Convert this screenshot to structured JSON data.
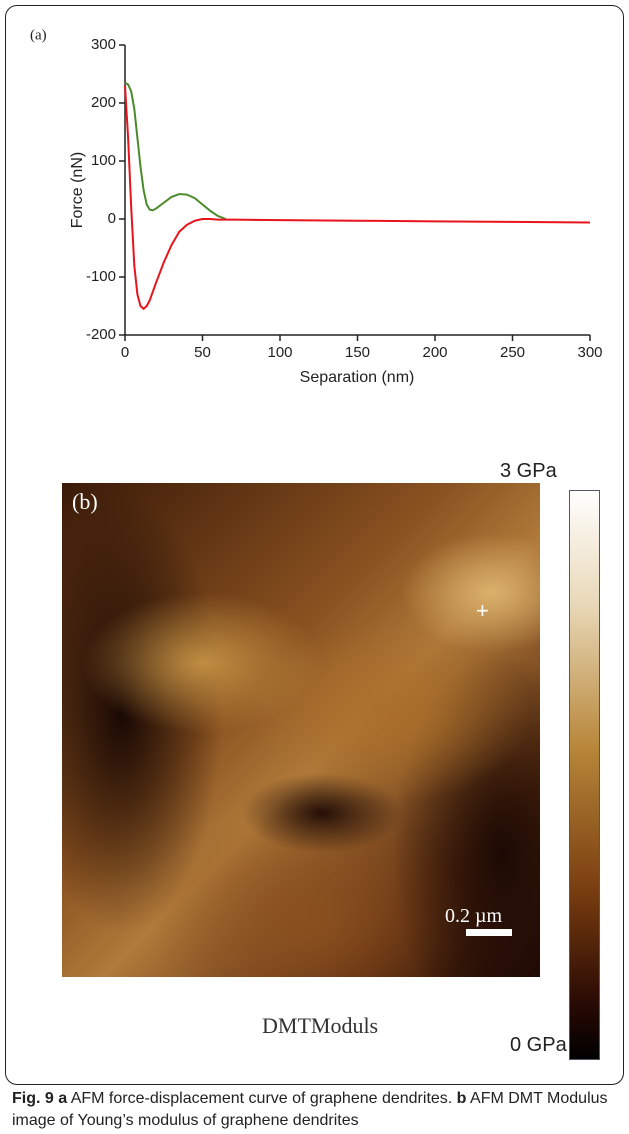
{
  "chart_data": {
    "type": "line",
    "panel_label": "(a)",
    "xlabel": "Separation (nm)",
    "ylabel": "Force (nN)",
    "x": [
      0,
      2,
      4,
      6,
      8,
      10,
      12,
      14,
      16,
      18,
      20,
      25,
      30,
      35,
      40,
      45,
      50,
      55,
      60,
      65,
      70,
      100,
      150,
      200,
      250,
      300
    ],
    "series": [
      {
        "color": "#4a8a2a",
        "values": [
          235,
          232,
          220,
          190,
          140,
          90,
          50,
          25,
          16,
          15,
          18,
          28,
          38,
          43,
          42,
          36,
          25,
          14,
          5,
          0,
          null,
          null,
          null,
          null,
          null,
          null
        ]
      },
      {
        "color": "#e8141c",
        "values": [
          230,
          140,
          20,
          -80,
          -130,
          -150,
          -155,
          -150,
          -140,
          -125,
          -110,
          -75,
          -45,
          -22,
          -10,
          -3,
          0,
          0,
          -1,
          -1,
          -1,
          -2,
          -3,
          -4,
          -5,
          -6
        ]
      }
    ],
    "xlim": [
      0,
      300
    ],
    "xticks": [
      0,
      50,
      100,
      150,
      200,
      250,
      300
    ],
    "ylim": [
      -200,
      300
    ],
    "yticks": [
      -200,
      -100,
      0,
      100,
      200,
      300
    ]
  },
  "panel_b": {
    "label": "(b)",
    "scale_bar": "0.2 µm",
    "colorbar_max": "3 GPa",
    "colorbar_min": "0 GPa",
    "image_title": "DMTModuls"
  },
  "caption": [
    {
      "text": "Fig. 9",
      "bold": true
    },
    {
      "text": " ",
      "bold": false
    },
    {
      "text": "a",
      "bold": true
    },
    {
      "text": " AFM force-displacement curve of graphene dendrites. ",
      "bold": false
    },
    {
      "text": "b",
      "bold": true
    },
    {
      "text": " AFM DMT Modulus image of Young’s modulus of graphene dendrites",
      "bold": false
    }
  ]
}
